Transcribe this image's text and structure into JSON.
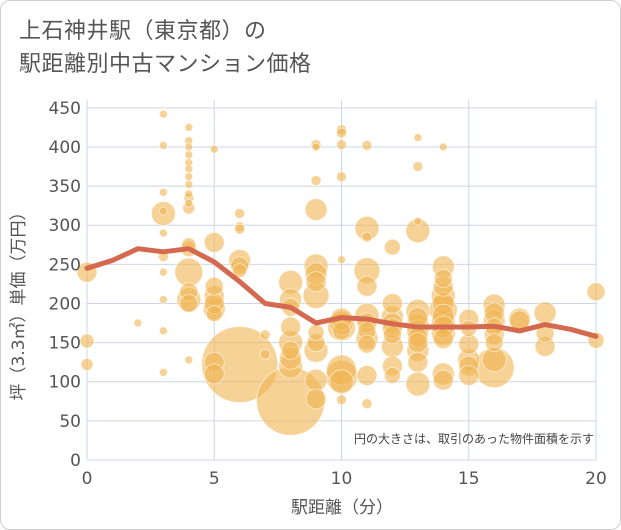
{
  "title_line1": "上石神井駅（東京都）の",
  "title_line2": "駅距離別中古マンション価格",
  "note": "円の大きさは、取引のあった物件面積を示す",
  "colors": {
    "bubble": "#f0b450",
    "line": "#d4694f",
    "grid": "#ccd6e4",
    "text": "#555555"
  },
  "chart_data": {
    "type": "scatter",
    "title": "上石神井駅（東京都）の駅距離別中古マンション価格",
    "xlabel": "駅距離（分）",
    "ylabel": "坪（3.3㎡）単価（万円）",
    "xlim": [
      0,
      20
    ],
    "ylim": [
      0,
      460
    ],
    "xticks": [
      0,
      5,
      10,
      15,
      20
    ],
    "yticks": [
      0,
      50,
      100,
      150,
      200,
      250,
      300,
      350,
      400,
      450
    ],
    "grid": true,
    "points": [
      {
        "x": 0,
        "y": 240,
        "s": 10
      },
      {
        "x": 0,
        "y": 122,
        "s": 6
      },
      {
        "x": 0,
        "y": 152,
        "s": 7
      },
      {
        "x": 2,
        "y": 175,
        "s": 4
      },
      {
        "x": 3,
        "y": 442,
        "s": 4
      },
      {
        "x": 3,
        "y": 402,
        "s": 4
      },
      {
        "x": 3,
        "y": 342,
        "s": 4
      },
      {
        "x": 3,
        "y": 315,
        "s": 12
      },
      {
        "x": 3,
        "y": 318,
        "s": 4
      },
      {
        "x": 3,
        "y": 290,
        "s": 4
      },
      {
        "x": 3,
        "y": 260,
        "s": 5
      },
      {
        "x": 3,
        "y": 240,
        "s": 4
      },
      {
        "x": 3,
        "y": 205,
        "s": 4
      },
      {
        "x": 3,
        "y": 165,
        "s": 4
      },
      {
        "x": 3,
        "y": 112,
        "s": 4
      },
      {
        "x": 4,
        "y": 425,
        "s": 4
      },
      {
        "x": 4,
        "y": 408,
        "s": 4
      },
      {
        "x": 4,
        "y": 400,
        "s": 4
      },
      {
        "x": 4,
        "y": 390,
        "s": 4
      },
      {
        "x": 4,
        "y": 380,
        "s": 4
      },
      {
        "x": 4,
        "y": 372,
        "s": 4
      },
      {
        "x": 4,
        "y": 362,
        "s": 4
      },
      {
        "x": 4,
        "y": 352,
        "s": 4
      },
      {
        "x": 4,
        "y": 340,
        "s": 4
      },
      {
        "x": 4,
        "y": 335,
        "s": 5
      },
      {
        "x": 4,
        "y": 328,
        "s": 4
      },
      {
        "x": 4,
        "y": 322,
        "s": 6
      },
      {
        "x": 4,
        "y": 275,
        "s": 7
      },
      {
        "x": 4,
        "y": 270,
        "s": 8
      },
      {
        "x": 4,
        "y": 240,
        "s": 14
      },
      {
        "x": 4,
        "y": 215,
        "s": 9
      },
      {
        "x": 4,
        "y": 205,
        "s": 12
      },
      {
        "x": 4,
        "y": 200,
        "s": 9
      },
      {
        "x": 4,
        "y": 128,
        "s": 4
      },
      {
        "x": 5,
        "y": 397,
        "s": 4
      },
      {
        "x": 5,
        "y": 278,
        "s": 10
      },
      {
        "x": 5,
        "y": 222,
        "s": 9
      },
      {
        "x": 5,
        "y": 210,
        "s": 10
      },
      {
        "x": 5,
        "y": 200,
        "s": 10
      },
      {
        "x": 5,
        "y": 193,
        "s": 11
      },
      {
        "x": 5,
        "y": 187,
        "s": 8
      },
      {
        "x": 5,
        "y": 125,
        "s": 10
      },
      {
        "x": 5,
        "y": 110,
        "s": 10
      },
      {
        "x": 6,
        "y": 315,
        "s": 5
      },
      {
        "x": 6,
        "y": 298,
        "s": 5
      },
      {
        "x": 6,
        "y": 295,
        "s": 5
      },
      {
        "x": 6,
        "y": 255,
        "s": 11
      },
      {
        "x": 6,
        "y": 248,
        "s": 9
      },
      {
        "x": 6,
        "y": 242,
        "s": 7
      },
      {
        "x": 6,
        "y": 122,
        "s": 38
      },
      {
        "x": 7,
        "y": 160,
        "s": 5
      },
      {
        "x": 7,
        "y": 135,
        "s": 5
      },
      {
        "x": 8,
        "y": 227,
        "s": 12
      },
      {
        "x": 8,
        "y": 205,
        "s": 11
      },
      {
        "x": 8,
        "y": 195,
        "s": 9
      },
      {
        "x": 8,
        "y": 170,
        "s": 10
      },
      {
        "x": 8,
        "y": 150,
        "s": 12
      },
      {
        "x": 8,
        "y": 140,
        "s": 9
      },
      {
        "x": 8,
        "y": 130,
        "s": 11
      },
      {
        "x": 8,
        "y": 120,
        "s": 12
      },
      {
        "x": 8,
        "y": 75,
        "s": 34
      },
      {
        "x": 9,
        "y": 403,
        "s": 5
      },
      {
        "x": 9,
        "y": 400,
        "s": 4
      },
      {
        "x": 9,
        "y": 357,
        "s": 5
      },
      {
        "x": 9,
        "y": 320,
        "s": 11
      },
      {
        "x": 9,
        "y": 248,
        "s": 12
      },
      {
        "x": 9,
        "y": 238,
        "s": 11
      },
      {
        "x": 9,
        "y": 228,
        "s": 10
      },
      {
        "x": 9,
        "y": 210,
        "s": 13
      },
      {
        "x": 9,
        "y": 163,
        "s": 8
      },
      {
        "x": 9,
        "y": 150,
        "s": 9
      },
      {
        "x": 9,
        "y": 140,
        "s": 12
      },
      {
        "x": 9,
        "y": 102,
        "s": 11
      },
      {
        "x": 9,
        "y": 78,
        "s": 10
      },
      {
        "x": 10,
        "y": 422,
        "s": 5
      },
      {
        "x": 10,
        "y": 418,
        "s": 5
      },
      {
        "x": 10,
        "y": 403,
        "s": 5
      },
      {
        "x": 10,
        "y": 362,
        "s": 5
      },
      {
        "x": 10,
        "y": 256,
        "s": 4
      },
      {
        "x": 10,
        "y": 180,
        "s": 11
      },
      {
        "x": 10,
        "y": 175,
        "s": 12
      },
      {
        "x": 10,
        "y": 170,
        "s": 14
      },
      {
        "x": 10,
        "y": 165,
        "s": 9
      },
      {
        "x": 10,
        "y": 115,
        "s": 15
      },
      {
        "x": 10,
        "y": 107,
        "s": 16
      },
      {
        "x": 10,
        "y": 100,
        "s": 12
      },
      {
        "x": 10,
        "y": 77,
        "s": 5
      },
      {
        "x": 11,
        "y": 402,
        "s": 5
      },
      {
        "x": 11,
        "y": 296,
        "s": 12
      },
      {
        "x": 11,
        "y": 285,
        "s": 5
      },
      {
        "x": 11,
        "y": 242,
        "s": 13
      },
      {
        "x": 11,
        "y": 222,
        "s": 10
      },
      {
        "x": 11,
        "y": 185,
        "s": 12
      },
      {
        "x": 11,
        "y": 175,
        "s": 10
      },
      {
        "x": 11,
        "y": 165,
        "s": 9
      },
      {
        "x": 11,
        "y": 155,
        "s": 11
      },
      {
        "x": 11,
        "y": 148,
        "s": 9
      },
      {
        "x": 11,
        "y": 108,
        "s": 10
      },
      {
        "x": 11,
        "y": 72,
        "s": 5
      },
      {
        "x": 12,
        "y": 272,
        "s": 8
      },
      {
        "x": 12,
        "y": 200,
        "s": 10
      },
      {
        "x": 12,
        "y": 183,
        "s": 11
      },
      {
        "x": 12,
        "y": 175,
        "s": 10
      },
      {
        "x": 12,
        "y": 168,
        "s": 10
      },
      {
        "x": 12,
        "y": 160,
        "s": 9
      },
      {
        "x": 12,
        "y": 145,
        "s": 11
      },
      {
        "x": 12,
        "y": 120,
        "s": 10
      },
      {
        "x": 12,
        "y": 108,
        "s": 8
      },
      {
        "x": 13,
        "y": 412,
        "s": 4
      },
      {
        "x": 13,
        "y": 375,
        "s": 5
      },
      {
        "x": 13,
        "y": 305,
        "s": 4
      },
      {
        "x": 13,
        "y": 293,
        "s": 12
      },
      {
        "x": 13,
        "y": 190,
        "s": 12
      },
      {
        "x": 13,
        "y": 182,
        "s": 10
      },
      {
        "x": 13,
        "y": 173,
        "s": 11
      },
      {
        "x": 13,
        "y": 165,
        "s": 11
      },
      {
        "x": 13,
        "y": 157,
        "s": 10
      },
      {
        "x": 13,
        "y": 150,
        "s": 10
      },
      {
        "x": 13,
        "y": 140,
        "s": 11
      },
      {
        "x": 13,
        "y": 125,
        "s": 10
      },
      {
        "x": 13,
        "y": 97,
        "s": 12
      },
      {
        "x": 14,
        "y": 400,
        "s": 4
      },
      {
        "x": 14,
        "y": 247,
        "s": 11
      },
      {
        "x": 14,
        "y": 232,
        "s": 9
      },
      {
        "x": 14,
        "y": 222,
        "s": 10
      },
      {
        "x": 14,
        "y": 210,
        "s": 12
      },
      {
        "x": 14,
        "y": 200,
        "s": 11
      },
      {
        "x": 14,
        "y": 192,
        "s": 14
      },
      {
        "x": 14,
        "y": 185,
        "s": 11
      },
      {
        "x": 14,
        "y": 177,
        "s": 12
      },
      {
        "x": 14,
        "y": 170,
        "s": 11
      },
      {
        "x": 14,
        "y": 162,
        "s": 12
      },
      {
        "x": 14,
        "y": 155,
        "s": 10
      },
      {
        "x": 14,
        "y": 110,
        "s": 11
      },
      {
        "x": 14,
        "y": 102,
        "s": 10
      },
      {
        "x": 15,
        "y": 180,
        "s": 10
      },
      {
        "x": 15,
        "y": 168,
        "s": 8
      },
      {
        "x": 15,
        "y": 148,
        "s": 10
      },
      {
        "x": 15,
        "y": 128,
        "s": 11
      },
      {
        "x": 15,
        "y": 120,
        "s": 10
      },
      {
        "x": 15,
        "y": 108,
        "s": 10
      },
      {
        "x": 16,
        "y": 198,
        "s": 11
      },
      {
        "x": 16,
        "y": 188,
        "s": 10
      },
      {
        "x": 16,
        "y": 178,
        "s": 11
      },
      {
        "x": 16,
        "y": 170,
        "s": 9
      },
      {
        "x": 16,
        "y": 160,
        "s": 10
      },
      {
        "x": 16,
        "y": 150,
        "s": 9
      },
      {
        "x": 16,
        "y": 128,
        "s": 12
      },
      {
        "x": 16,
        "y": 118,
        "s": 20
      },
      {
        "x": 17,
        "y": 180,
        "s": 11
      },
      {
        "x": 17,
        "y": 178,
        "s": 10
      },
      {
        "x": 18,
        "y": 188,
        "s": 11
      },
      {
        "x": 18,
        "y": 162,
        "s": 9
      },
      {
        "x": 18,
        "y": 145,
        "s": 10
      },
      {
        "x": 20,
        "y": 215,
        "s": 9
      },
      {
        "x": 20,
        "y": 153,
        "s": 8
      }
    ],
    "trend": [
      {
        "x": 0,
        "y": 245
      },
      {
        "x": 1,
        "y": 255
      },
      {
        "x": 2,
        "y": 270
      },
      {
        "x": 3,
        "y": 266
      },
      {
        "x": 4,
        "y": 270
      },
      {
        "x": 5,
        "y": 253
      },
      {
        "x": 6,
        "y": 228
      },
      {
        "x": 7,
        "y": 200
      },
      {
        "x": 8,
        "y": 195
      },
      {
        "x": 9,
        "y": 175
      },
      {
        "x": 10,
        "y": 182
      },
      {
        "x": 11,
        "y": 180
      },
      {
        "x": 12,
        "y": 174
      },
      {
        "x": 13,
        "y": 170
      },
      {
        "x": 14,
        "y": 170
      },
      {
        "x": 15,
        "y": 170
      },
      {
        "x": 16,
        "y": 171
      },
      {
        "x": 17,
        "y": 165
      },
      {
        "x": 18,
        "y": 173
      },
      {
        "x": 19,
        "y": 167
      },
      {
        "x": 20,
        "y": 158
      }
    ]
  }
}
